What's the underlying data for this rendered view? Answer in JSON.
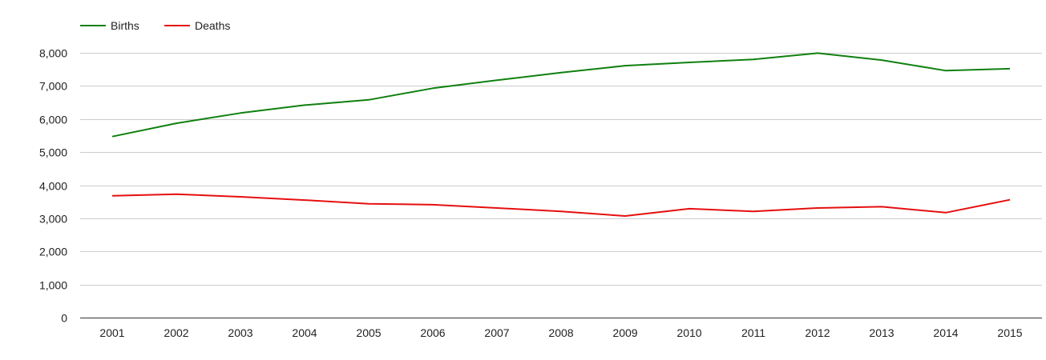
{
  "chart_data": {
    "type": "line",
    "title": "",
    "xlabel": "",
    "ylabel": "",
    "categories": [
      "2001",
      "2002",
      "2003",
      "2004",
      "2005",
      "2006",
      "2007",
      "2008",
      "2009",
      "2010",
      "2011",
      "2012",
      "2013",
      "2014",
      "2015"
    ],
    "ylim": [
      0,
      8000
    ],
    "yticks": [
      0,
      1000,
      2000,
      3000,
      4000,
      5000,
      6000,
      7000,
      8000
    ],
    "ytick_labels": [
      "0",
      "1,000",
      "2,000",
      "3,000",
      "4,000",
      "5,000",
      "6,000",
      "7,000",
      "8,000"
    ],
    "grid": true,
    "legend_position": "top-left",
    "series": [
      {
        "name": "Births",
        "color": "#108010",
        "values": [
          5470,
          5870,
          6180,
          6420,
          6580,
          6930,
          7170,
          7400,
          7610,
          7710,
          7800,
          7990,
          7780,
          7460,
          7520
        ]
      },
      {
        "name": "Deaths",
        "color": "#e60f0f",
        "values": [
          3680,
          3730,
          3650,
          3550,
          3440,
          3410,
          3310,
          3210,
          3070,
          3290,
          3210,
          3310,
          3350,
          3170,
          3560
        ]
      }
    ]
  }
}
